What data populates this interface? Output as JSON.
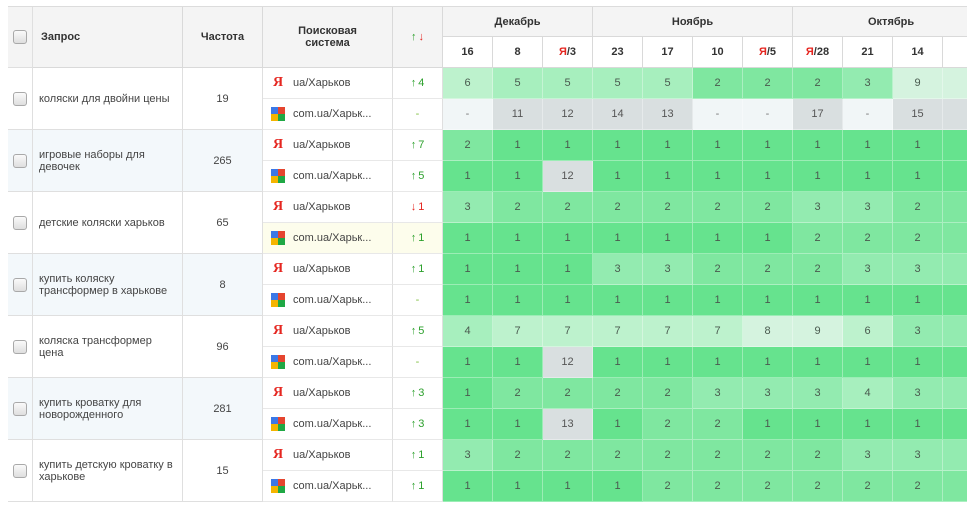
{
  "header": {
    "query": "Запрос",
    "frequency": "Частота",
    "engine": "Поисковая система",
    "change_up": "↑",
    "change_down": "↓",
    "months": [
      "Декабрь",
      "Ноябрь",
      "Октябрь"
    ],
    "dates": [
      {
        "pre": "",
        "red": "",
        "post": "16"
      },
      {
        "pre": "",
        "red": "",
        "post": "8"
      },
      {
        "pre": "",
        "red": "Я",
        "post": "/3"
      },
      {
        "pre": "",
        "red": "",
        "post": "23"
      },
      {
        "pre": "",
        "red": "",
        "post": "17"
      },
      {
        "pre": "",
        "red": "",
        "post": "10"
      },
      {
        "pre": "",
        "red": "Я",
        "post": "/5"
      },
      {
        "pre": "",
        "red": "Я",
        "post": "/28"
      },
      {
        "pre": "",
        "red": "",
        "post": "21"
      },
      {
        "pre": "",
        "red": "",
        "post": "14"
      }
    ]
  },
  "rows": [
    {
      "query": "коляски для двойни цены",
      "freq": "19",
      "yandex": {
        "label": "ua/Харьков",
        "arrow": "↑",
        "delta": "4",
        "values": [
          "6",
          "5",
          "5",
          "5",
          "5",
          "2",
          "2",
          "2",
          "3",
          "9"
        ]
      },
      "google": {
        "label": "com.ua/Харьк...",
        "arrow": "",
        "delta": "-",
        "values": [
          "-",
          "11",
          "12",
          "14",
          "13",
          "-",
          "-",
          "17",
          "-",
          "15"
        ]
      }
    },
    {
      "query": "игровые наборы для девочек",
      "freq": "265",
      "yandex": {
        "label": "ua/Харьков",
        "arrow": "↑",
        "delta": "7",
        "values": [
          "2",
          "1",
          "1",
          "1",
          "1",
          "1",
          "1",
          "1",
          "1",
          "1"
        ]
      },
      "google": {
        "label": "com.ua/Харьк...",
        "arrow": "↑",
        "delta": "5",
        "values": [
          "1",
          "1",
          "12",
          "1",
          "1",
          "1",
          "1",
          "1",
          "1",
          "1"
        ]
      }
    },
    {
      "query": "детские коляски харьков",
      "freq": "65",
      "yandex": {
        "label": "ua/Харьков",
        "arrow": "↓",
        "delta": "1",
        "values": [
          "3",
          "2",
          "2",
          "2",
          "2",
          "2",
          "2",
          "3",
          "3",
          "2"
        ]
      },
      "google": {
        "label": "com.ua/Харьк...",
        "arrow": "↑",
        "delta": "1",
        "values": [
          "1",
          "1",
          "1",
          "1",
          "1",
          "1",
          "1",
          "2",
          "2",
          "2"
        ]
      }
    },
    {
      "query": "купить коляску трансформер в харькове",
      "freq": "8",
      "yandex": {
        "label": "ua/Харьков",
        "arrow": "↑",
        "delta": "1",
        "values": [
          "1",
          "1",
          "1",
          "3",
          "3",
          "2",
          "2",
          "2",
          "3",
          "3"
        ]
      },
      "google": {
        "label": "com.ua/Харьк...",
        "arrow": "",
        "delta": "-",
        "values": [
          "1",
          "1",
          "1",
          "1",
          "1",
          "1",
          "1",
          "1",
          "1",
          "1"
        ]
      }
    },
    {
      "query": "коляска трансформер цена",
      "freq": "96",
      "yandex": {
        "label": "ua/Харьков",
        "arrow": "↑",
        "delta": "5",
        "values": [
          "4",
          "7",
          "7",
          "7",
          "7",
          "7",
          "8",
          "9",
          "6",
          "3"
        ]
      },
      "google": {
        "label": "com.ua/Харьк...",
        "arrow": "",
        "delta": "-",
        "values": [
          "1",
          "1",
          "12",
          "1",
          "1",
          "1",
          "1",
          "1",
          "1",
          "1"
        ]
      }
    },
    {
      "query": "купить кроватку для новорожденного",
      "freq": "281",
      "yandex": {
        "label": "ua/Харьков",
        "arrow": "↑",
        "delta": "3",
        "values": [
          "1",
          "2",
          "2",
          "2",
          "2",
          "3",
          "3",
          "3",
          "4",
          "3"
        ]
      },
      "google": {
        "label": "com.ua/Харьк...",
        "arrow": "↑",
        "delta": "3",
        "values": [
          "1",
          "1",
          "13",
          "1",
          "2",
          "2",
          "1",
          "1",
          "1",
          "1"
        ]
      }
    },
    {
      "query": "купить детскую кроватку в харькове",
      "freq": "15",
      "yandex": {
        "label": "ua/Харьков",
        "arrow": "↑",
        "delta": "1",
        "values": [
          "3",
          "2",
          "2",
          "2",
          "2",
          "2",
          "2",
          "2",
          "3",
          "3"
        ]
      },
      "google": {
        "label": "com.ua/Харьк...",
        "arrow": "↑",
        "delta": "1",
        "values": [
          "1",
          "1",
          "1",
          "1",
          "2",
          "2",
          "2",
          "2",
          "2",
          "2"
        ]
      }
    }
  ],
  "colors": {
    "up": "#2ca02c",
    "down": "#e52620",
    "yandex": "#e52620",
    "google_blue": "#3b78e7",
    "google_red": "#e5452f",
    "google_yellow": "#f4b400",
    "google_green": "#1fa845"
  },
  "icons": {
    "yandex": "yandex-logo-icon",
    "google": "google-logo-icon",
    "checkbox": "checkbox"
  }
}
